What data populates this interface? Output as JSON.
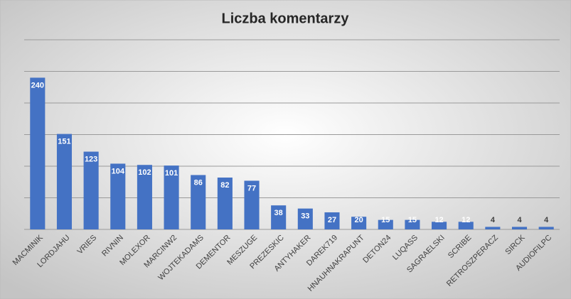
{
  "chart_data": {
    "type": "bar",
    "title": "Liczba komentarzy",
    "categories": [
      "MACMINIK",
      "LORDJAHU",
      "VRIES",
      "RIVNIN",
      "MOLEXOR",
      "MARCINW2",
      "WOJTEKADAMS",
      "DEMENTOR",
      "MESZUGE",
      "PREZESKIC",
      "ANTYHAKER",
      "DAREK719",
      "HNAUHNAKRAPUNT",
      "DETON24",
      "LUQASS",
      "SAGRAELSKI",
      "SCRIBE",
      "RETROSZPERACZ",
      "SIRCK",
      "AUDIOFILPC"
    ],
    "values": [
      240,
      151,
      123,
      104,
      102,
      101,
      86,
      82,
      77,
      38,
      33,
      27,
      20,
      15,
      15,
      12,
      12,
      4,
      4,
      4
    ],
    "color": "#4472c4",
    "ylim": [
      0,
      300
    ],
    "yticks": [
      0,
      50,
      100,
      150,
      200,
      250,
      300
    ],
    "grid": true
  }
}
